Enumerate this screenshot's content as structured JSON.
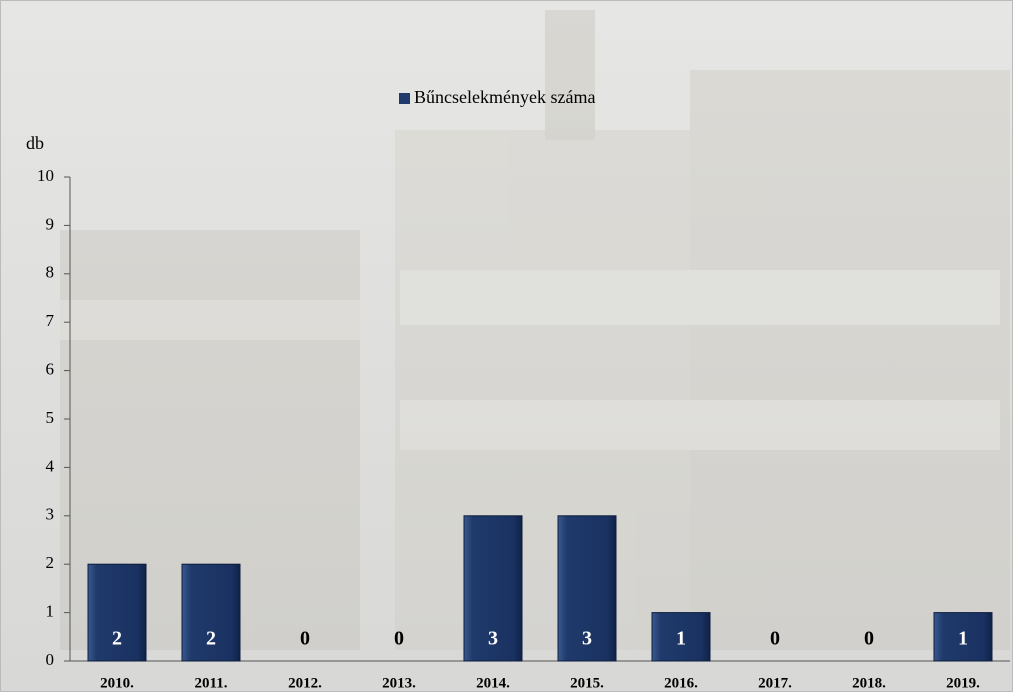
{
  "chart_data": {
    "type": "bar",
    "legend": "Bűncselekmények száma",
    "y_label": "db",
    "categories": [
      "2010.",
      "2011.",
      "2012.",
      "2013.",
      "2014.",
      "2015.",
      "2016.",
      "2017.",
      "2018.",
      "2019."
    ],
    "values": [
      2,
      2,
      0,
      0,
      3,
      3,
      1,
      0,
      0,
      1
    ],
    "color": "#1f3a6b",
    "ylim": [
      0,
      10
    ],
    "yticks": [
      0,
      1,
      2,
      3,
      4,
      5,
      6,
      7,
      8,
      9,
      10
    ],
    "grid": false
  }
}
